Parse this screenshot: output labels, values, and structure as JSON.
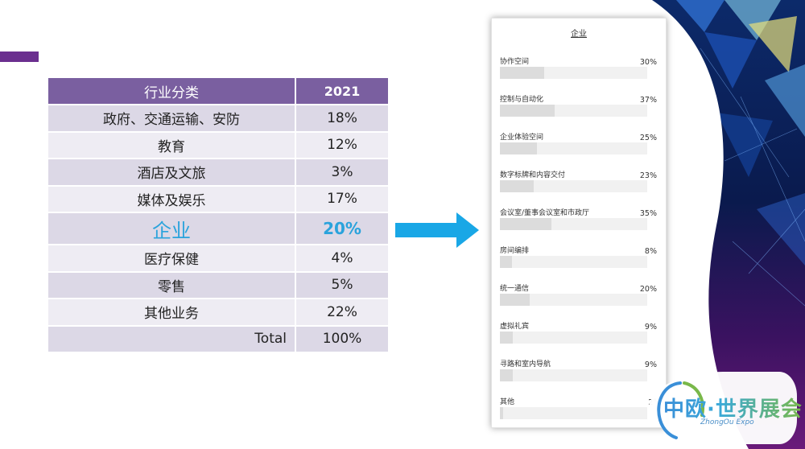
{
  "table": {
    "header": {
      "category": "行业分类",
      "year": "2021"
    },
    "rows": [
      {
        "name": "政府、交通运输、安防",
        "pct": "18%"
      },
      {
        "name": "教育",
        "pct": "12%"
      },
      {
        "name": "酒店及文旅",
        "pct": "3%"
      },
      {
        "name": "媒体及娱乐",
        "pct": "17%"
      },
      {
        "name": "企业",
        "pct": "20%",
        "highlight": true
      },
      {
        "name": "医疗保健",
        "pct": "4%"
      },
      {
        "name": "零售",
        "pct": "5%"
      },
      {
        "name": "其他业务",
        "pct": "22%"
      }
    ],
    "total": {
      "name": "Total",
      "pct": "100%"
    }
  },
  "survey": {
    "title": "企业",
    "items": [
      {
        "label": "协作空间",
        "value": "30%",
        "fraction": 0.3
      },
      {
        "label": "控制与自动化",
        "value": "37%",
        "fraction": 0.37
      },
      {
        "label": "企业体验空间",
        "value": "25%",
        "fraction": 0.25
      },
      {
        "label": "数字标牌和内容交付",
        "value": "23%",
        "fraction": 0.23
      },
      {
        "label": "会议室/董事会议室和市政厅",
        "value": "35%",
        "fraction": 0.35
      },
      {
        "label": "房间编排",
        "value": "8%",
        "fraction": 0.08
      },
      {
        "label": "统一通信",
        "value": "20%",
        "fraction": 0.2
      },
      {
        "label": "虚拟礼宾",
        "value": "9%",
        "fraction": 0.09
      },
      {
        "label": "寻路和室内导航",
        "value": "9%",
        "fraction": 0.09
      },
      {
        "label": "其他",
        "value": "2°",
        "fraction": 0.02
      }
    ]
  },
  "logo": {
    "text": "中欧·世界展会",
    "subtitle": "ZhongOu Expo"
  },
  "colors": {
    "accent": "#6b2f8f",
    "table_header": "#7a5fa0",
    "highlight": "#2aa3dc",
    "arrow": "#19a7e6"
  }
}
